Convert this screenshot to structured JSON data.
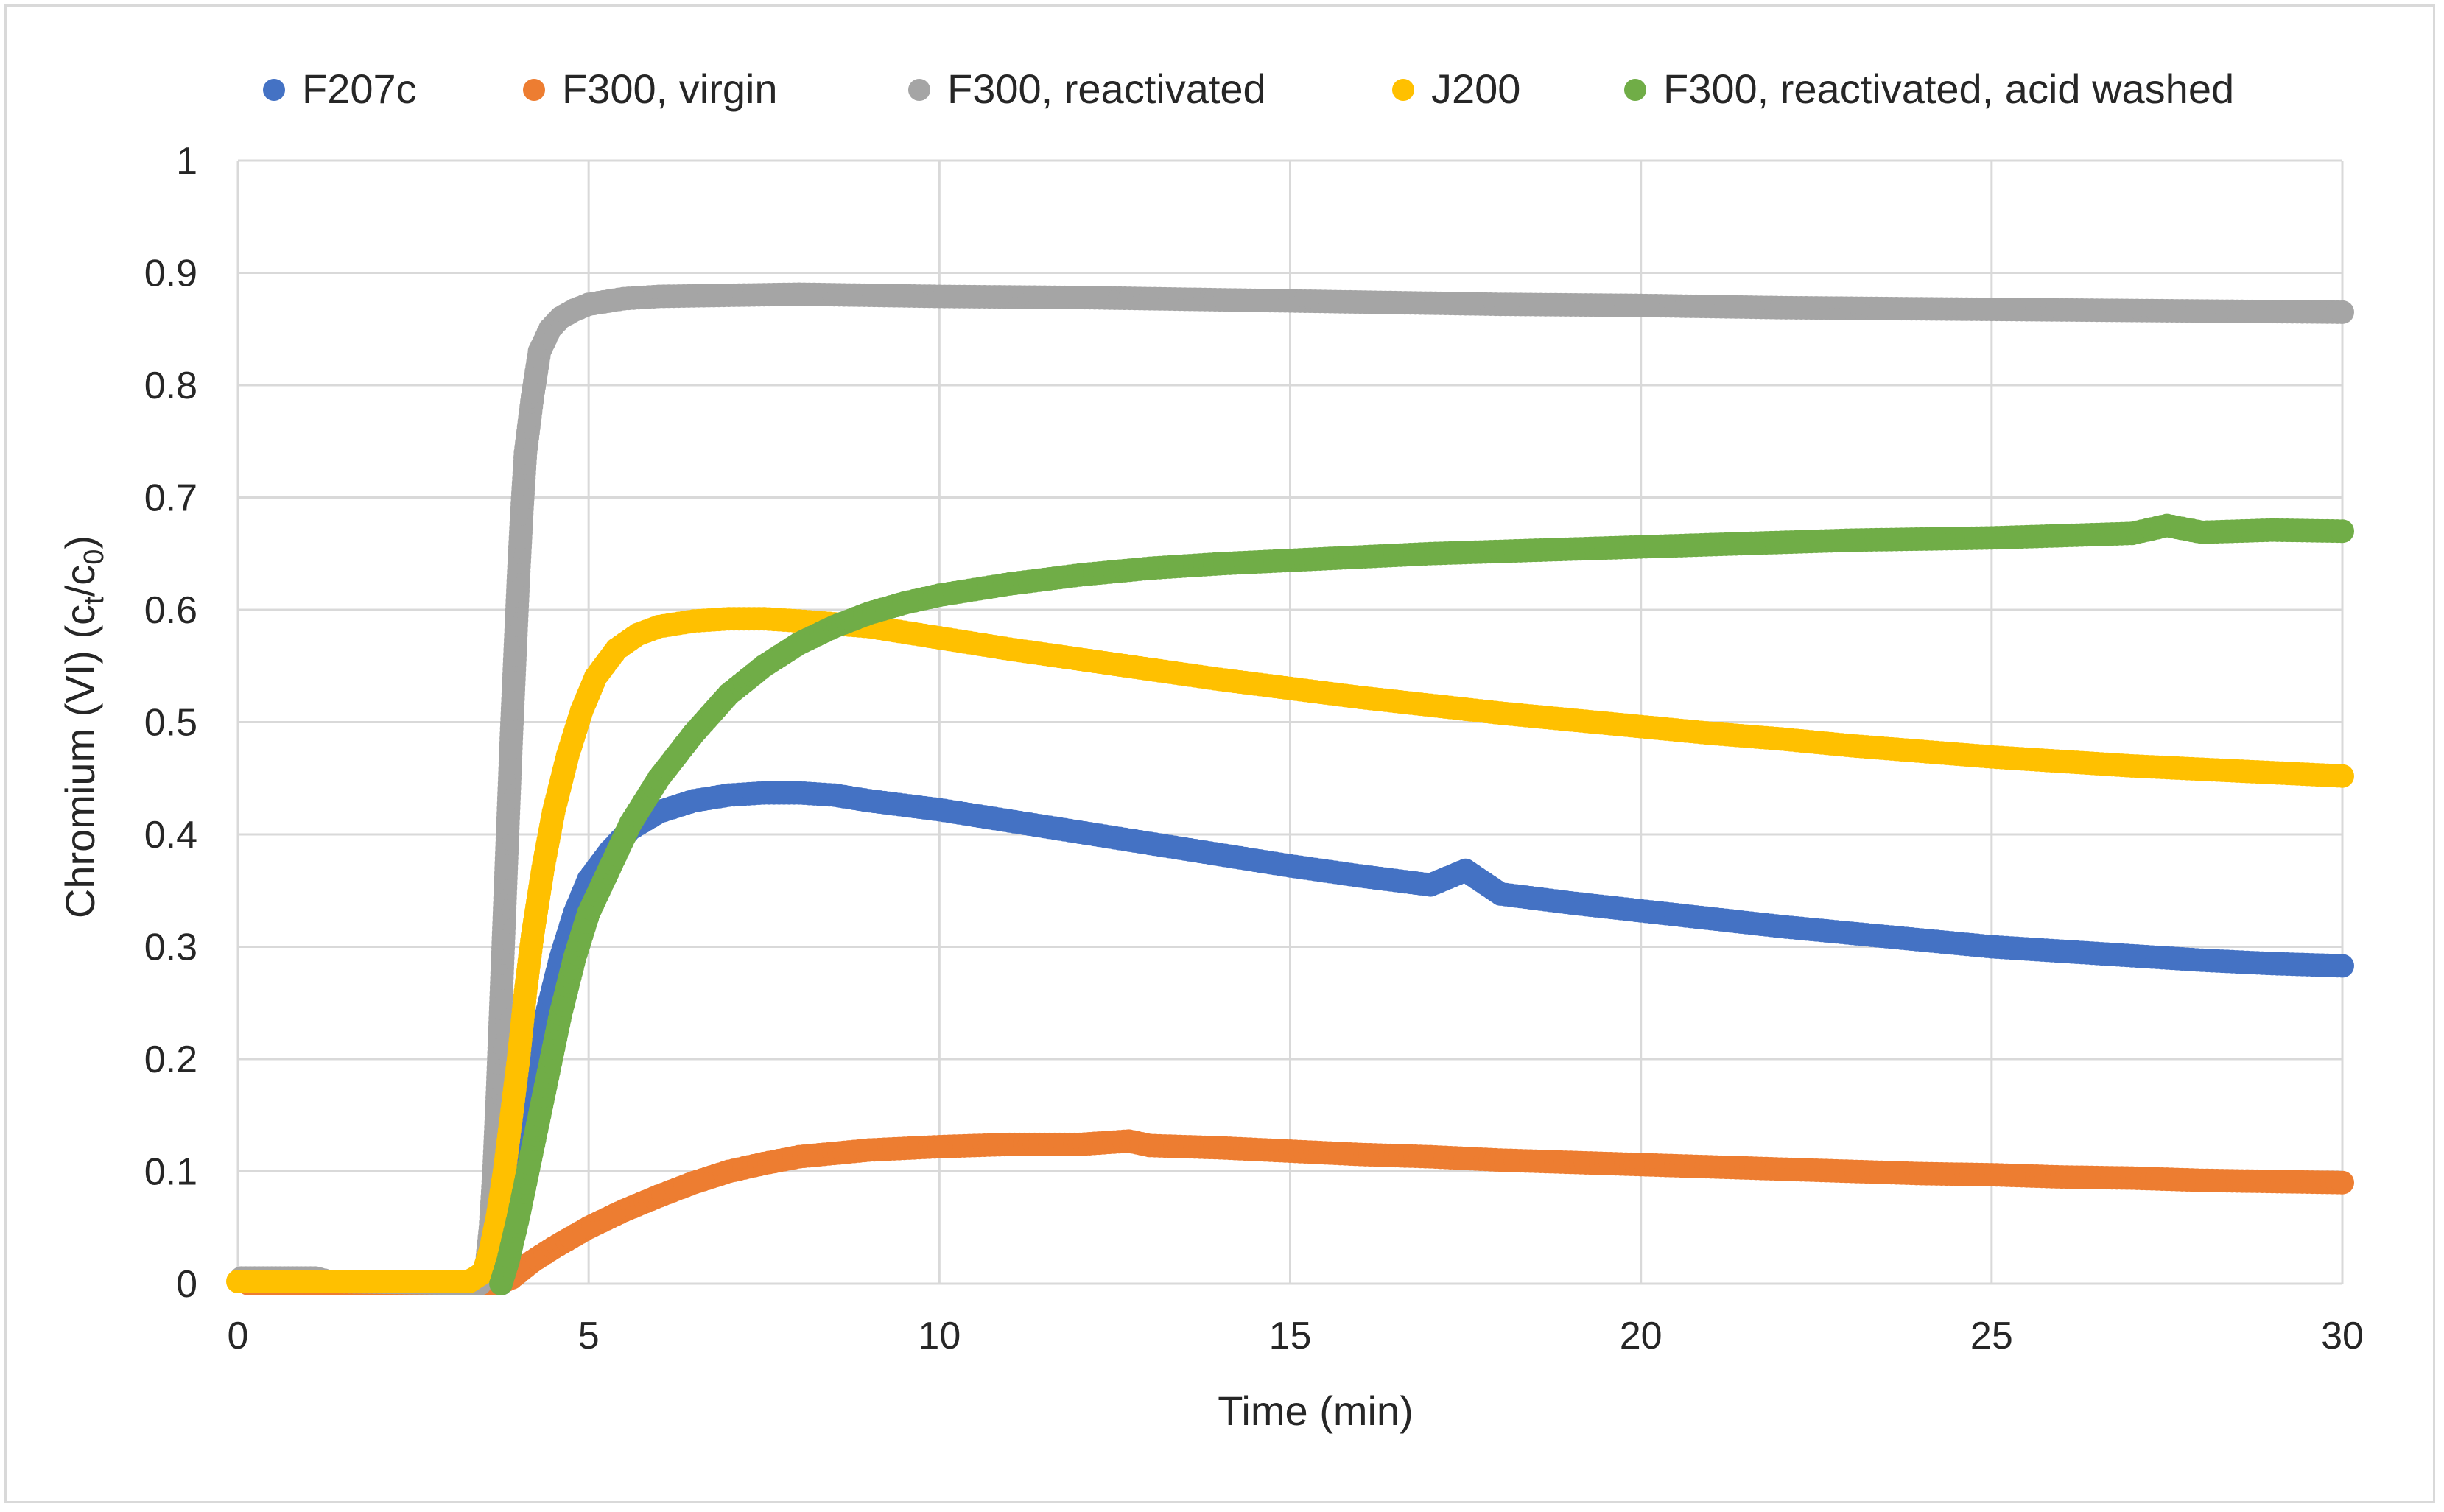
{
  "chart_data": {
    "type": "scatter",
    "title": "",
    "xlabel": "Time (min)",
    "ylabel": {
      "prefix": "Chromium (VI) (c",
      "sub1": "t",
      "mid": "/c",
      "sub2": "0",
      "suffix": ")"
    },
    "xlim": [
      0,
      30
    ],
    "ylim": [
      0,
      1
    ],
    "xticks": [
      "0",
      "5",
      "10",
      "15",
      "20",
      "25",
      "30"
    ],
    "yticks": [
      "0",
      "0.1",
      "0.2",
      "0.3",
      "0.4",
      "0.5",
      "0.6",
      "0.7",
      "0.8",
      "0.9",
      "1"
    ],
    "grid": true,
    "legend_position": "top",
    "series": [
      {
        "name": "F207c",
        "color": "#4472C4",
        "points": [
          [
            2.45,
            0
          ],
          [
            2.55,
            0
          ],
          [
            3.75,
            0
          ],
          [
            3.8,
            0.01
          ],
          [
            3.9,
            0.04
          ],
          [
            4.0,
            0.09
          ],
          [
            4.2,
            0.17
          ],
          [
            4.4,
            0.24
          ],
          [
            4.6,
            0.29
          ],
          [
            4.8,
            0.33
          ],
          [
            5.0,
            0.36
          ],
          [
            5.3,
            0.385
          ],
          [
            5.6,
            0.405
          ],
          [
            6.0,
            0.42
          ],
          [
            6.5,
            0.43
          ],
          [
            7.0,
            0.435
          ],
          [
            7.5,
            0.437
          ],
          [
            8.0,
            0.437
          ],
          [
            8.5,
            0.435
          ],
          [
            9.0,
            0.43
          ],
          [
            10,
            0.422
          ],
          [
            11,
            0.412
          ],
          [
            12,
            0.402
          ],
          [
            13,
            0.392
          ],
          [
            14,
            0.382
          ],
          [
            15,
            0.372
          ],
          [
            16,
            0.363
          ],
          [
            17,
            0.355
          ],
          [
            17.5,
            0.368
          ],
          [
            18,
            0.347
          ],
          [
            19,
            0.339
          ],
          [
            20,
            0.332
          ],
          [
            21,
            0.325
          ],
          [
            22,
            0.318
          ],
          [
            23,
            0.312
          ],
          [
            24,
            0.306
          ],
          [
            25,
            0.3
          ],
          [
            26,
            0.296
          ],
          [
            27,
            0.292
          ],
          [
            28,
            0.288
          ],
          [
            29,
            0.285
          ],
          [
            30,
            0.283
          ]
        ]
      },
      {
        "name": "F300, virgin",
        "color": "#ED7D31",
        "points": [
          [
            0.15,
            0
          ],
          [
            0.8,
            0
          ],
          [
            2.0,
            0
          ],
          [
            2.25,
            0
          ],
          [
            2.95,
            0
          ],
          [
            3.7,
            0
          ],
          [
            3.9,
            0.005
          ],
          [
            4.2,
            0.02
          ],
          [
            4.5,
            0.032
          ],
          [
            5,
            0.05
          ],
          [
            5.5,
            0.065
          ],
          [
            6,
            0.078
          ],
          [
            6.5,
            0.09
          ],
          [
            7,
            0.1
          ],
          [
            7.5,
            0.107
          ],
          [
            8,
            0.113
          ],
          [
            9,
            0.119
          ],
          [
            10,
            0.122
          ],
          [
            11,
            0.124
          ],
          [
            12,
            0.124
          ],
          [
            12.7,
            0.127
          ],
          [
            13,
            0.123
          ],
          [
            14,
            0.121
          ],
          [
            15,
            0.118
          ],
          [
            16,
            0.115
          ],
          [
            17,
            0.113
          ],
          [
            18,
            0.11
          ],
          [
            19,
            0.108
          ],
          [
            20,
            0.106
          ],
          [
            21,
            0.104
          ],
          [
            22,
            0.102
          ],
          [
            23,
            0.1
          ],
          [
            24,
            0.098
          ],
          [
            25,
            0.097
          ],
          [
            26,
            0.095
          ],
          [
            27,
            0.094
          ],
          [
            28,
            0.092
          ],
          [
            29,
            0.091
          ],
          [
            30,
            0.09
          ]
        ]
      },
      {
        "name": "F300, reactivated",
        "color": "#A5A5A5",
        "points": [
          [
            0.05,
            0.005
          ],
          [
            0.3,
            0.005
          ],
          [
            0.6,
            0.005
          ],
          [
            0.9,
            0.005
          ],
          [
            1.1,
            0.005
          ],
          [
            1.3,
            0.002
          ],
          [
            3.45,
            0
          ],
          [
            3.55,
            0.02
          ],
          [
            3.6,
            0.05
          ],
          [
            3.65,
            0.1
          ],
          [
            3.7,
            0.17
          ],
          [
            3.75,
            0.25
          ],
          [
            3.8,
            0.33
          ],
          [
            3.85,
            0.41
          ],
          [
            3.9,
            0.49
          ],
          [
            3.95,
            0.56
          ],
          [
            4.0,
            0.63
          ],
          [
            4.05,
            0.69
          ],
          [
            4.1,
            0.74
          ],
          [
            4.2,
            0.79
          ],
          [
            4.3,
            0.83
          ],
          [
            4.45,
            0.85
          ],
          [
            4.6,
            0.86
          ],
          [
            4.8,
            0.867
          ],
          [
            5.0,
            0.872
          ],
          [
            5.5,
            0.877
          ],
          [
            6,
            0.879
          ],
          [
            7,
            0.88
          ],
          [
            8,
            0.881
          ],
          [
            9,
            0.88
          ],
          [
            10,
            0.879
          ],
          [
            12,
            0.878
          ],
          [
            14,
            0.876
          ],
          [
            16,
            0.874
          ],
          [
            18,
            0.872
          ],
          [
            20,
            0.871
          ],
          [
            22,
            0.869
          ],
          [
            24,
            0.868
          ],
          [
            26,
            0.867
          ],
          [
            28,
            0.866
          ],
          [
            30,
            0.865
          ]
        ]
      },
      {
        "name": "J200",
        "color": "#FFC000",
        "points": [
          [
            0.0,
            0.002
          ],
          [
            3.3,
            0.002
          ],
          [
            3.5,
            0.01
          ],
          [
            3.6,
            0.03
          ],
          [
            3.7,
            0.06
          ],
          [
            3.8,
            0.1
          ],
          [
            3.9,
            0.15
          ],
          [
            4.0,
            0.2
          ],
          [
            4.1,
            0.26
          ],
          [
            4.2,
            0.31
          ],
          [
            4.35,
            0.37
          ],
          [
            4.5,
            0.42
          ],
          [
            4.7,
            0.47
          ],
          [
            4.9,
            0.51
          ],
          [
            5.1,
            0.54
          ],
          [
            5.4,
            0.565
          ],
          [
            5.7,
            0.578
          ],
          [
            6.0,
            0.585
          ],
          [
            6.5,
            0.59
          ],
          [
            7,
            0.592
          ],
          [
            7.5,
            0.592
          ],
          [
            8,
            0.59
          ],
          [
            9,
            0.585
          ],
          [
            10,
            0.575
          ],
          [
            11,
            0.565
          ],
          [
            12,
            0.556
          ],
          [
            13,
            0.547
          ],
          [
            14,
            0.538
          ],
          [
            15,
            0.53
          ],
          [
            16,
            0.522
          ],
          [
            17,
            0.515
          ],
          [
            18,
            0.508
          ],
          [
            19,
            0.502
          ],
          [
            20,
            0.496
          ],
          [
            21,
            0.49
          ],
          [
            22,
            0.485
          ],
          [
            23,
            0.479
          ],
          [
            24,
            0.474
          ],
          [
            25,
            0.469
          ],
          [
            26,
            0.465
          ],
          [
            27,
            0.461
          ],
          [
            28,
            0.458
          ],
          [
            29,
            0.455
          ],
          [
            30,
            0.452
          ]
        ]
      },
      {
        "name": "F300, reactivated, acid washed",
        "color": "#70AD47",
        "points": [
          [
            3.75,
            0
          ],
          [
            3.85,
            0.02
          ],
          [
            4.0,
            0.06
          ],
          [
            4.2,
            0.12
          ],
          [
            4.4,
            0.18
          ],
          [
            4.6,
            0.24
          ],
          [
            4.8,
            0.29
          ],
          [
            5.0,
            0.33
          ],
          [
            5.3,
            0.37
          ],
          [
            5.6,
            0.41
          ],
          [
            6.0,
            0.45
          ],
          [
            6.5,
            0.49
          ],
          [
            7.0,
            0.525
          ],
          [
            7.5,
            0.55
          ],
          [
            8.0,
            0.57
          ],
          [
            8.5,
            0.585
          ],
          [
            9.0,
            0.597
          ],
          [
            9.5,
            0.606
          ],
          [
            10,
            0.613
          ],
          [
            11,
            0.623
          ],
          [
            12,
            0.631
          ],
          [
            13,
            0.637
          ],
          [
            14,
            0.641
          ],
          [
            15,
            0.644
          ],
          [
            16,
            0.647
          ],
          [
            17,
            0.65
          ],
          [
            18,
            0.652
          ],
          [
            19,
            0.654
          ],
          [
            20,
            0.656
          ],
          [
            21,
            0.658
          ],
          [
            22,
            0.66
          ],
          [
            23,
            0.662
          ],
          [
            24,
            0.663
          ],
          [
            25,
            0.664
          ],
          [
            26,
            0.666
          ],
          [
            27,
            0.668
          ],
          [
            27.5,
            0.675
          ],
          [
            28,
            0.669
          ],
          [
            29,
            0.671
          ],
          [
            30,
            0.67
          ]
        ]
      }
    ]
  }
}
